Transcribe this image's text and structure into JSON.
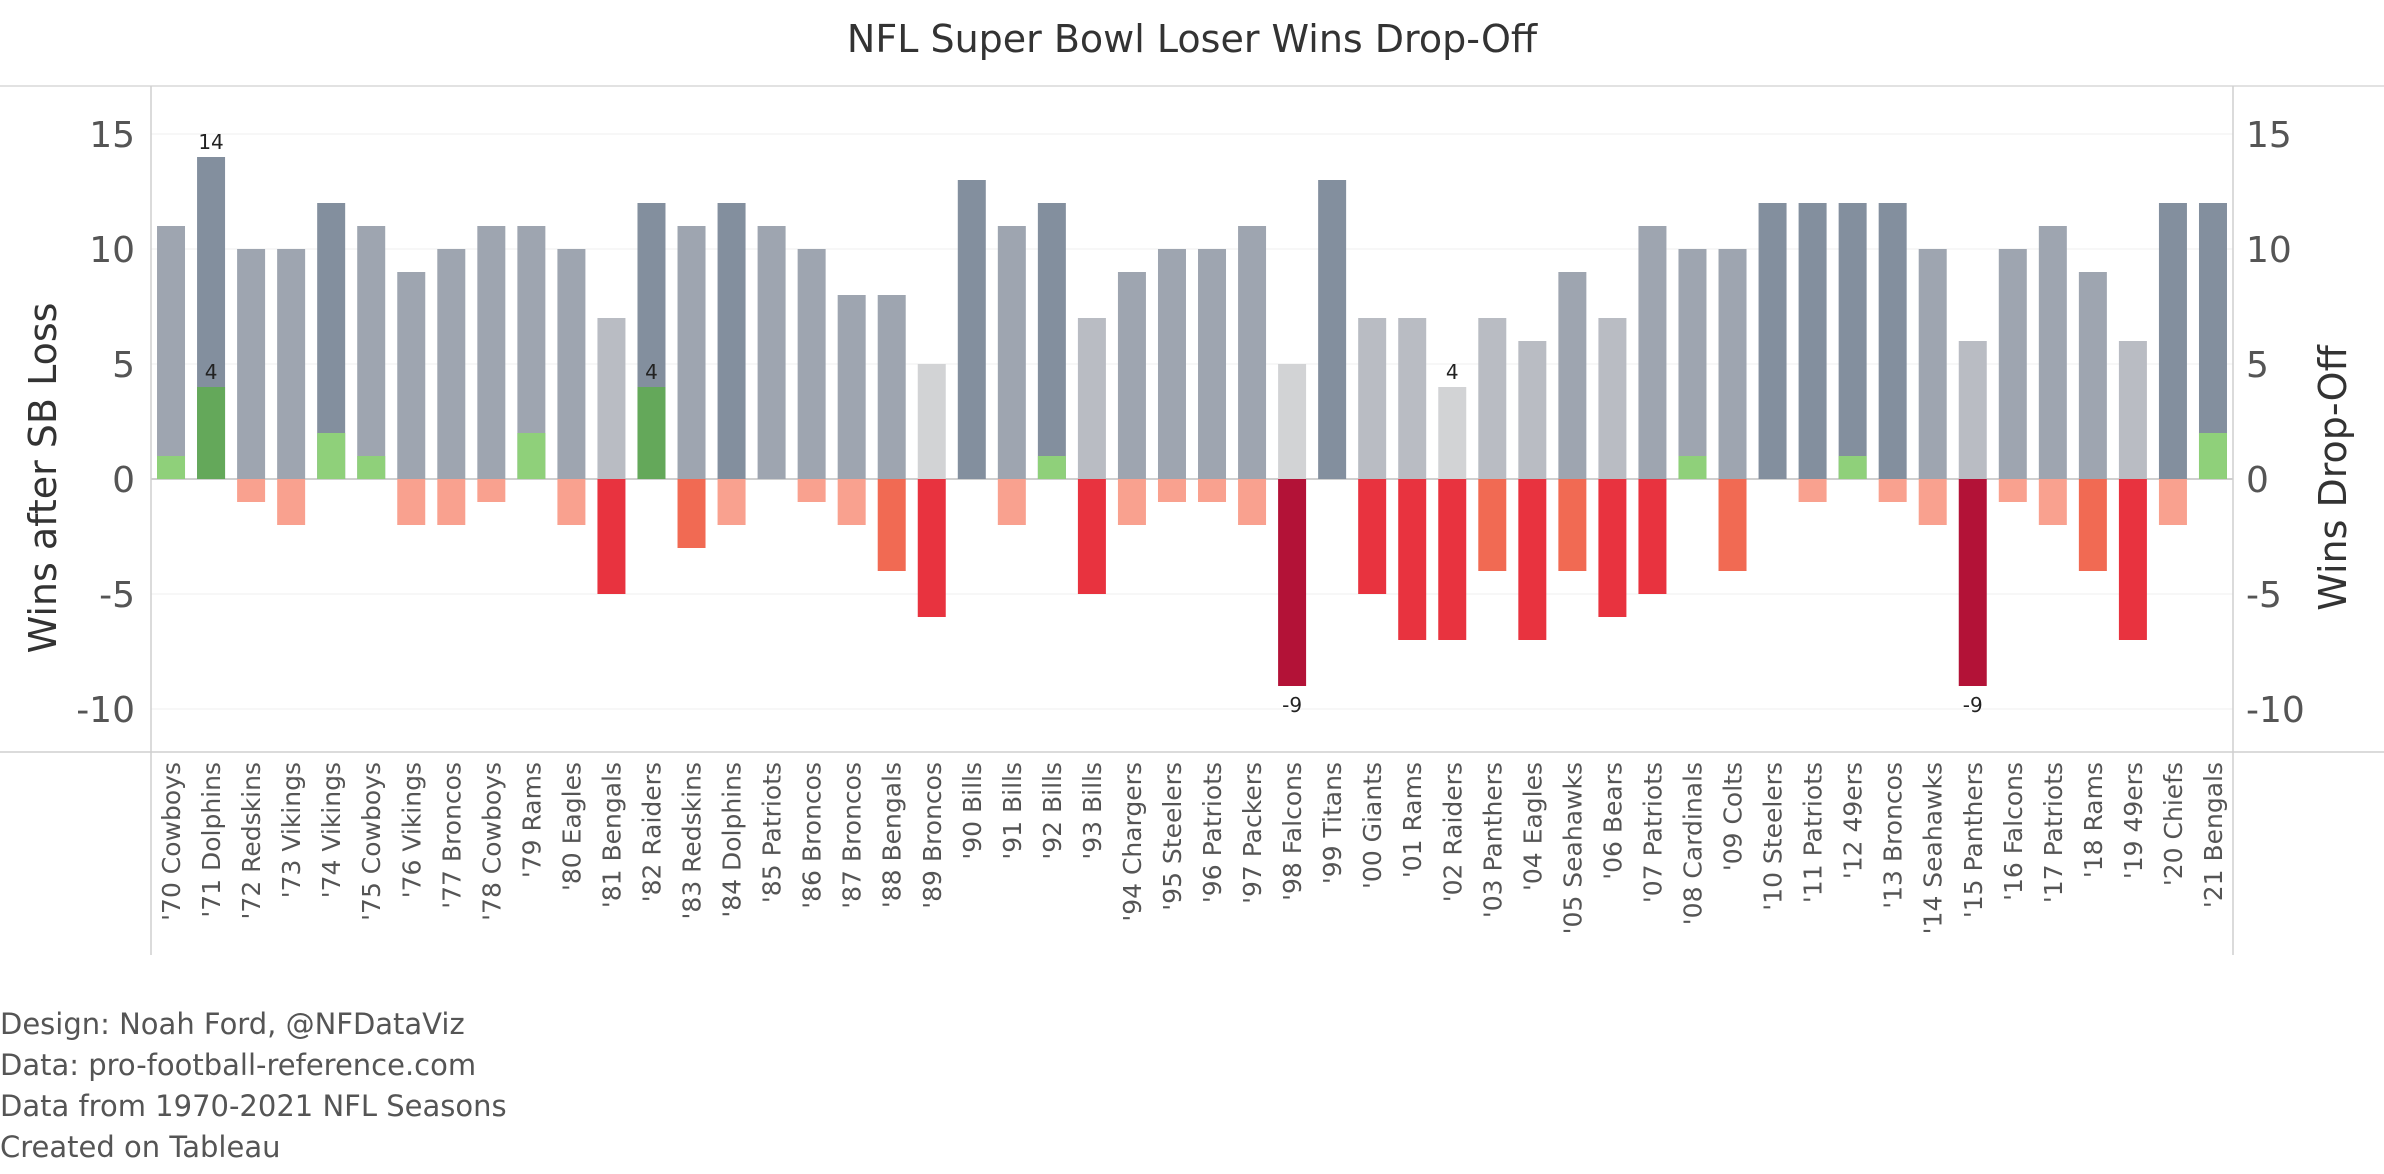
{
  "chart_data": {
    "type": "bar",
    "title": "NFL Super Bowl Loser Wins Drop-Off",
    "ylabel_left": "Wins after SB Loss",
    "ylabel_right": "Wins Drop-Off",
    "ylim": [
      -12,
      15
    ],
    "yticks": [
      15,
      10,
      5,
      0,
      -5,
      -10
    ],
    "categories": [
      "'70 Cowboys",
      "'71 Dolphins",
      "'72 Redskins",
      "'73 Vikings",
      "'74 Vikings",
      "'75 Cowboys",
      "'76 Vikings",
      "'77 Broncos",
      "'78 Cowboys",
      "'79 Rams",
      "'80 Eagles",
      "'81 Bengals",
      "'82 Raiders",
      "'83 Redskins",
      "'84 Dolphins",
      "'85 Patriots",
      "'86 Broncos",
      "'87 Broncos",
      "'88 Bengals",
      "'89 Broncos",
      "'90 Bills",
      "'91 Bills",
      "'92 Bills",
      "'93 Bills",
      "'94 Chargers",
      "'95 Steelers",
      "'96 Patriots",
      "'97 Packers",
      "'98 Falcons",
      "'99 Titans",
      "'00 Giants",
      "'01 Rams",
      "'02 Raiders",
      "'03 Panthers",
      "'04 Eagles",
      "'05 Seahawks",
      "'06 Bears",
      "'07 Patriots",
      "'08 Cardinals",
      "'09 Colts",
      "'10 Steelers",
      "'11 Patriots",
      "'12 49ers",
      "'13 Broncos",
      "'14 Seahawks",
      "'15 Panthers",
      "'16 Falcons",
      "'17 Patriots",
      "'18 Rams",
      "'19 49ers",
      "'20 Chiefs",
      "'21 Bengals"
    ],
    "series": [
      {
        "name": "Wins after SB Loss",
        "values": [
          11,
          14,
          10,
          10,
          12,
          11,
          9,
          10,
          11,
          11,
          10,
          7,
          12,
          11,
          12,
          11,
          10,
          8,
          8,
          5,
          13,
          11,
          12,
          7,
          9,
          10,
          10,
          11,
          5,
          13,
          7,
          7,
          4,
          7,
          6,
          9,
          7,
          11,
          10,
          10,
          12,
          12,
          12,
          12,
          10,
          6,
          10,
          11,
          9,
          6,
          12,
          12
        ]
      },
      {
        "name": "Wins Drop-Off",
        "values": [
          1,
          4,
          -1,
          -2,
          2,
          1,
          -2,
          -2,
          -1,
          2,
          -2,
          -5,
          4,
          -3,
          -2,
          0,
          -1,
          -2,
          -4,
          -6,
          0,
          -2,
          1,
          -5,
          -2,
          -1,
          -1,
          -2,
          -9,
          0,
          -5,
          -7,
          -7,
          -4,
          -7,
          -4,
          -6,
          -5,
          1,
          -4,
          0,
          -1,
          1,
          -1,
          -2,
          -9,
          -1,
          -2,
          -4,
          -7,
          -2,
          2
        ]
      }
    ],
    "data_labels": [
      {
        "series": "Wins after SB Loss",
        "index": 1,
        "text": "14"
      },
      {
        "series": "Wins Drop-Off",
        "index": 1,
        "text": "4"
      },
      {
        "series": "Wins Drop-Off",
        "index": 12,
        "text": "4"
      },
      {
        "series": "Wins after SB Loss",
        "index": 32,
        "text": "4"
      },
      {
        "series": "Wins Drop-Off",
        "index": 28,
        "text": "-9"
      },
      {
        "series": "Wins Drop-Off",
        "index": 45,
        "text": "-9"
      }
    ],
    "grid": true,
    "colors": {
      "positive": "#8fd07a",
      "positive_strong": "#64a85a",
      "neg_light": "#f9a18f",
      "neg_mid": "#f16a53",
      "neg_strong": "#e8333f",
      "neg_deep": "#b31237",
      "gray_light": "#d2d3d5",
      "gray_mid": "#b9bcc3",
      "gray_dark": "#838f9e"
    }
  },
  "footer": {
    "design": "Design: Noah Ford, @NFDataViz",
    "data": "Data: pro-football-reference.com",
    "range": "Data from 1970-2021 NFL Seasons",
    "created": "Created on Tableau"
  }
}
